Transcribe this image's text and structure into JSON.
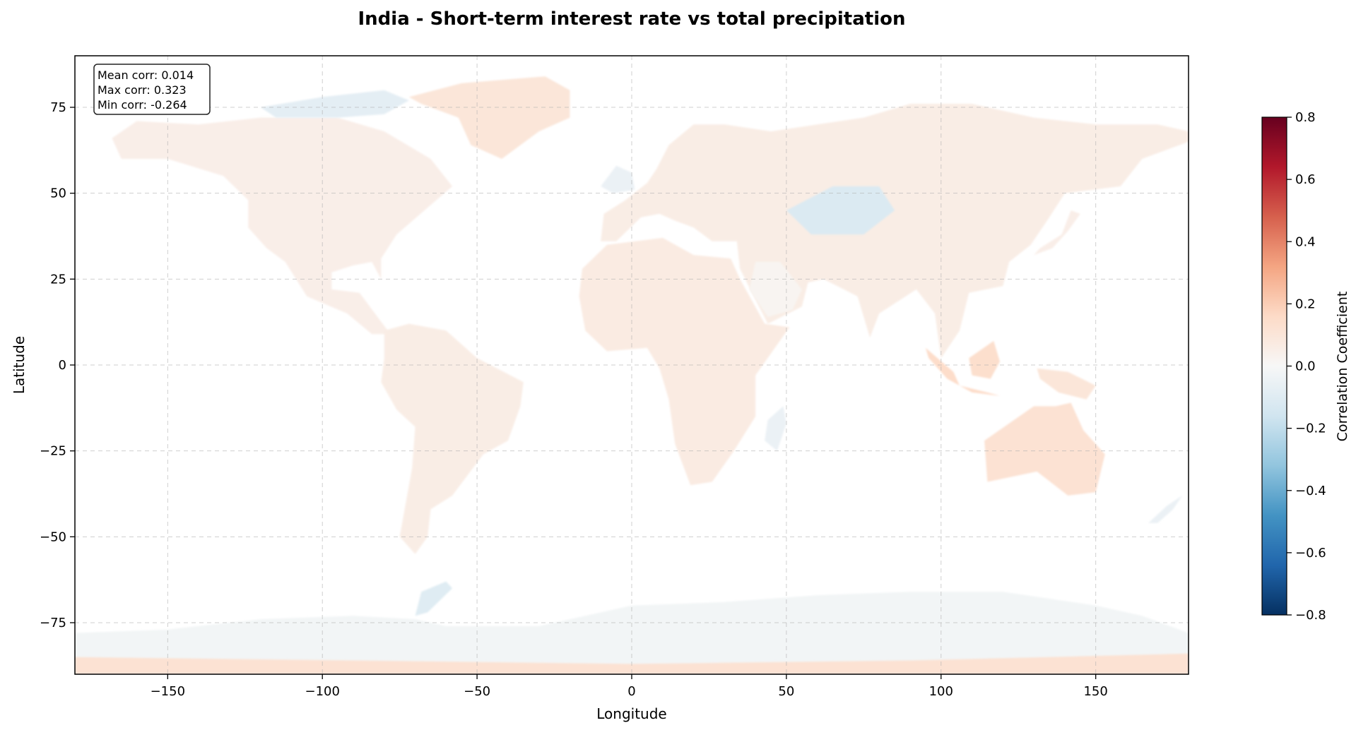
{
  "chart_data": {
    "type": "heatmap",
    "title": "India - Short-term interest rate vs total precipitation",
    "xlabel": "Longitude",
    "ylabel": "Latitude",
    "xlim": [
      -180,
      180
    ],
    "ylim": [
      -90,
      90
    ],
    "x_ticks": [
      -150,
      -100,
      -50,
      0,
      50,
      100,
      150
    ],
    "x_tick_labels": [
      "−150",
      "−100",
      "−50",
      "0",
      "50",
      "100",
      "150"
    ],
    "y_ticks": [
      75,
      50,
      25,
      0,
      -25,
      -50,
      -75
    ],
    "y_tick_labels": [
      "75",
      "50",
      "25",
      "0",
      "−25",
      "−50",
      "−75"
    ],
    "grid": true,
    "colormap": "RdBu_r",
    "colorbar": {
      "label": "Correlation Coefficient",
      "range": [
        -0.8,
        0.8
      ],
      "ticks": [
        0.8,
        0.6,
        0.4,
        0.2,
        0.0,
        -0.2,
        -0.4,
        -0.6,
        -0.8
      ],
      "tick_labels": [
        "0.8",
        "0.6",
        "0.4",
        "0.2",
        "0.0",
        "−0.2",
        "−0.4",
        "−0.6",
        "−0.8"
      ],
      "colors": [
        "#053061",
        "#2166ac",
        "#4393c3",
        "#92c5de",
        "#d1e5f0",
        "#f7f7f7",
        "#fddbc7",
        "#f4a582",
        "#d6604d",
        "#b2182b",
        "#67001f"
      ]
    },
    "stats": {
      "lines": [
        "Mean corr: 0.014",
        "Max corr: 0.323",
        "Min corr: -0.264"
      ],
      "mean": 0.014,
      "max": 0.323,
      "min": -0.264
    },
    "regions": [
      {
        "name": "North America",
        "lon_lat": [
          [
            -168,
            66
          ],
          [
            -160,
            71
          ],
          [
            -140,
            70
          ],
          [
            -120,
            72
          ],
          [
            -95,
            72
          ],
          [
            -80,
            68
          ],
          [
            -65,
            60
          ],
          [
            -58,
            52
          ],
          [
            -67,
            45
          ],
          [
            -76,
            38
          ],
          [
            -81,
            31
          ],
          [
            -81,
            25
          ],
          [
            -84,
            30
          ],
          [
            -90,
            29
          ],
          [
            -97,
            27
          ],
          [
            -97,
            22
          ],
          [
            -88,
            21
          ],
          [
            -83,
            15
          ],
          [
            -78,
            9
          ],
          [
            -84,
            9
          ],
          [
            -92,
            15
          ],
          [
            -105,
            20
          ],
          [
            -112,
            30
          ],
          [
            -118,
            34
          ],
          [
            -124,
            40
          ],
          [
            -124,
            48
          ],
          [
            -132,
            55
          ],
          [
            -150,
            60
          ],
          [
            -165,
            60
          ]
        ],
        "value": 0.05
      },
      {
        "name": "Greenland",
        "lon_lat": [
          [
            -72,
            78
          ],
          [
            -55,
            82
          ],
          [
            -28,
            84
          ],
          [
            -20,
            80
          ],
          [
            -20,
            72
          ],
          [
            -30,
            68
          ],
          [
            -42,
            60
          ],
          [
            -52,
            64
          ],
          [
            -56,
            72
          ],
          [
            -68,
            76
          ]
        ],
        "value": 0.1
      },
      {
        "name": "Canadian Arctic",
        "lon_lat": [
          [
            -120,
            75
          ],
          [
            -100,
            78
          ],
          [
            -80,
            80
          ],
          [
            -72,
            77
          ],
          [
            -80,
            73
          ],
          [
            -95,
            72
          ],
          [
            -115,
            72
          ]
        ],
        "value": -0.08
      },
      {
        "name": "South America",
        "lon_lat": [
          [
            -80,
            10
          ],
          [
            -72,
            12
          ],
          [
            -60,
            10
          ],
          [
            -50,
            2
          ],
          [
            -35,
            -5
          ],
          [
            -36,
            -12
          ],
          [
            -40,
            -22
          ],
          [
            -48,
            -26
          ],
          [
            -58,
            -38
          ],
          [
            -65,
            -42
          ],
          [
            -66,
            -50
          ],
          [
            -70,
            -55
          ],
          [
            -75,
            -50
          ],
          [
            -73,
            -40
          ],
          [
            -71,
            -30
          ],
          [
            -70,
            -18
          ],
          [
            -76,
            -13
          ],
          [
            -81,
            -5
          ],
          [
            -80,
            2
          ]
        ],
        "value": 0.06
      },
      {
        "name": "Africa",
        "lon_lat": [
          [
            -17,
            20
          ],
          [
            -16,
            28
          ],
          [
            -8,
            35
          ],
          [
            10,
            37
          ],
          [
            20,
            32
          ],
          [
            32,
            31
          ],
          [
            35,
            25
          ],
          [
            43,
            12
          ],
          [
            51,
            11
          ],
          [
            40,
            -3
          ],
          [
            40,
            -15
          ],
          [
            33,
            -25
          ],
          [
            26,
            -34
          ],
          [
            19,
            -35
          ],
          [
            14,
            -23
          ],
          [
            12,
            -10
          ],
          [
            9,
            -1
          ],
          [
            5,
            5
          ],
          [
            -8,
            4
          ],
          [
            -15,
            10
          ]
        ],
        "value": 0.07
      },
      {
        "name": "Madagascar",
        "lon_lat": [
          [
            44,
            -16
          ],
          [
            49,
            -12
          ],
          [
            50,
            -17
          ],
          [
            47,
            -25
          ],
          [
            43,
            -22
          ]
        ],
        "value": -0.05
      },
      {
        "name": "Eurasia",
        "lon_lat": [
          [
            -10,
            36
          ],
          [
            -9,
            44
          ],
          [
            -2,
            48
          ],
          [
            5,
            53
          ],
          [
            8,
            57
          ],
          [
            12,
            64
          ],
          [
            20,
            70
          ],
          [
            30,
            70
          ],
          [
            45,
            68
          ],
          [
            60,
            70
          ],
          [
            75,
            72
          ],
          [
            90,
            76
          ],
          [
            110,
            76
          ],
          [
            130,
            72
          ],
          [
            150,
            70
          ],
          [
            170,
            70
          ],
          [
            180,
            68
          ],
          [
            180,
            65
          ],
          [
            165,
            60
          ],
          [
            158,
            52
          ],
          [
            140,
            50
          ],
          [
            135,
            43
          ],
          [
            129,
            35
          ],
          [
            122,
            30
          ],
          [
            120,
            23
          ],
          [
            109,
            21
          ],
          [
            106,
            10
          ],
          [
            100,
            2
          ],
          [
            98,
            15
          ],
          [
            92,
            22
          ],
          [
            80,
            15
          ],
          [
            77,
            8
          ],
          [
            73,
            20
          ],
          [
            62,
            25
          ],
          [
            57,
            24
          ],
          [
            55,
            17
          ],
          [
            44,
            12
          ],
          [
            35,
            28
          ],
          [
            34,
            36
          ],
          [
            26,
            36
          ],
          [
            20,
            40
          ],
          [
            14,
            42
          ],
          [
            9,
            44
          ],
          [
            3,
            43
          ],
          [
            -5,
            36
          ]
        ],
        "value": 0.06
      },
      {
        "name": "Arabia dip",
        "lon_lat": [
          [
            40,
            30
          ],
          [
            48,
            30
          ],
          [
            55,
            22
          ],
          [
            52,
            16
          ],
          [
            44,
            14
          ],
          [
            38,
            22
          ]
        ],
        "value": 0.02
      },
      {
        "name": "Central Asia",
        "lon_lat": [
          [
            50,
            45
          ],
          [
            65,
            52
          ],
          [
            80,
            52
          ],
          [
            85,
            45
          ],
          [
            75,
            38
          ],
          [
            58,
            38
          ]
        ],
        "value": -0.12
      },
      {
        "name": "British Isles",
        "lon_lat": [
          [
            -10,
            52
          ],
          [
            -5,
            58
          ],
          [
            0,
            56
          ],
          [
            1,
            51
          ],
          [
            -6,
            50
          ]
        ],
        "value": -0.05
      },
      {
        "name": "Japan",
        "lon_lat": [
          [
            130,
            32
          ],
          [
            136,
            34
          ],
          [
            141,
            39
          ],
          [
            145,
            44
          ],
          [
            142,
            45
          ],
          [
            139,
            38
          ],
          [
            132,
            34
          ]
        ],
        "value": 0.05
      },
      {
        "name": "Indonesia W",
        "lon_lat": [
          [
            95,
            5
          ],
          [
            104,
            -2
          ],
          [
            106,
            -6
          ],
          [
            115,
            -8
          ],
          [
            119,
            -9
          ],
          [
            110,
            -8
          ],
          [
            102,
            -4
          ],
          [
            96,
            2
          ]
        ],
        "value": 0.15
      },
      {
        "name": "Borneo",
        "lon_lat": [
          [
            109,
            2
          ],
          [
            117,
            7
          ],
          [
            119,
            1
          ],
          [
            116,
            -4
          ],
          [
            110,
            -3
          ]
        ],
        "value": 0.14
      },
      {
        "name": "New Guinea",
        "lon_lat": [
          [
            131,
            -1
          ],
          [
            141,
            -2
          ],
          [
            150,
            -6
          ],
          [
            147,
            -10
          ],
          [
            138,
            -8
          ],
          [
            132,
            -4
          ]
        ],
        "value": 0.1
      },
      {
        "name": "Australia",
        "lon_lat": [
          [
            114,
            -22
          ],
          [
            122,
            -17
          ],
          [
            130,
            -12
          ],
          [
            137,
            -12
          ],
          [
            142,
            -11
          ],
          [
            146,
            -19
          ],
          [
            153,
            -26
          ],
          [
            150,
            -37
          ],
          [
            141,
            -38
          ],
          [
            131,
            -31
          ],
          [
            115,
            -34
          ]
        ],
        "value": 0.12
      },
      {
        "name": "New Zealand",
        "lon_lat": [
          [
            167,
            -46
          ],
          [
            173,
            -41
          ],
          [
            178,
            -38
          ],
          [
            175,
            -42
          ],
          [
            170,
            -46
          ]
        ],
        "value": -0.05
      },
      {
        "name": "Antarctic Peninsula",
        "lon_lat": [
          [
            -68,
            -66
          ],
          [
            -60,
            -63
          ],
          [
            -58,
            -65
          ],
          [
            -66,
            -72
          ],
          [
            -70,
            -73
          ]
        ],
        "value": -0.1
      },
      {
        "name": "Antarctica",
        "lon_lat": [
          [
            -180,
            -78
          ],
          [
            -150,
            -77
          ],
          [
            -120,
            -74
          ],
          [
            -90,
            -73
          ],
          [
            -70,
            -74
          ],
          [
            -60,
            -76
          ],
          [
            -30,
            -76
          ],
          [
            0,
            -70
          ],
          [
            30,
            -69
          ],
          [
            60,
            -67
          ],
          [
            90,
            -66
          ],
          [
            120,
            -66
          ],
          [
            150,
            -70
          ],
          [
            165,
            -73
          ],
          [
            180,
            -78
          ],
          [
            180,
            -90
          ],
          [
            -180,
            -90
          ]
        ],
        "value": -0.02
      },
      {
        "name": "Antarctica S rim",
        "lon_lat": [
          [
            -180,
            -85
          ],
          [
            -90,
            -86
          ],
          [
            0,
            -87
          ],
          [
            90,
            -86
          ],
          [
            180,
            -84
          ],
          [
            180,
            -90
          ],
          [
            -180,
            -90
          ]
        ],
        "value": 0.12
      }
    ]
  }
}
